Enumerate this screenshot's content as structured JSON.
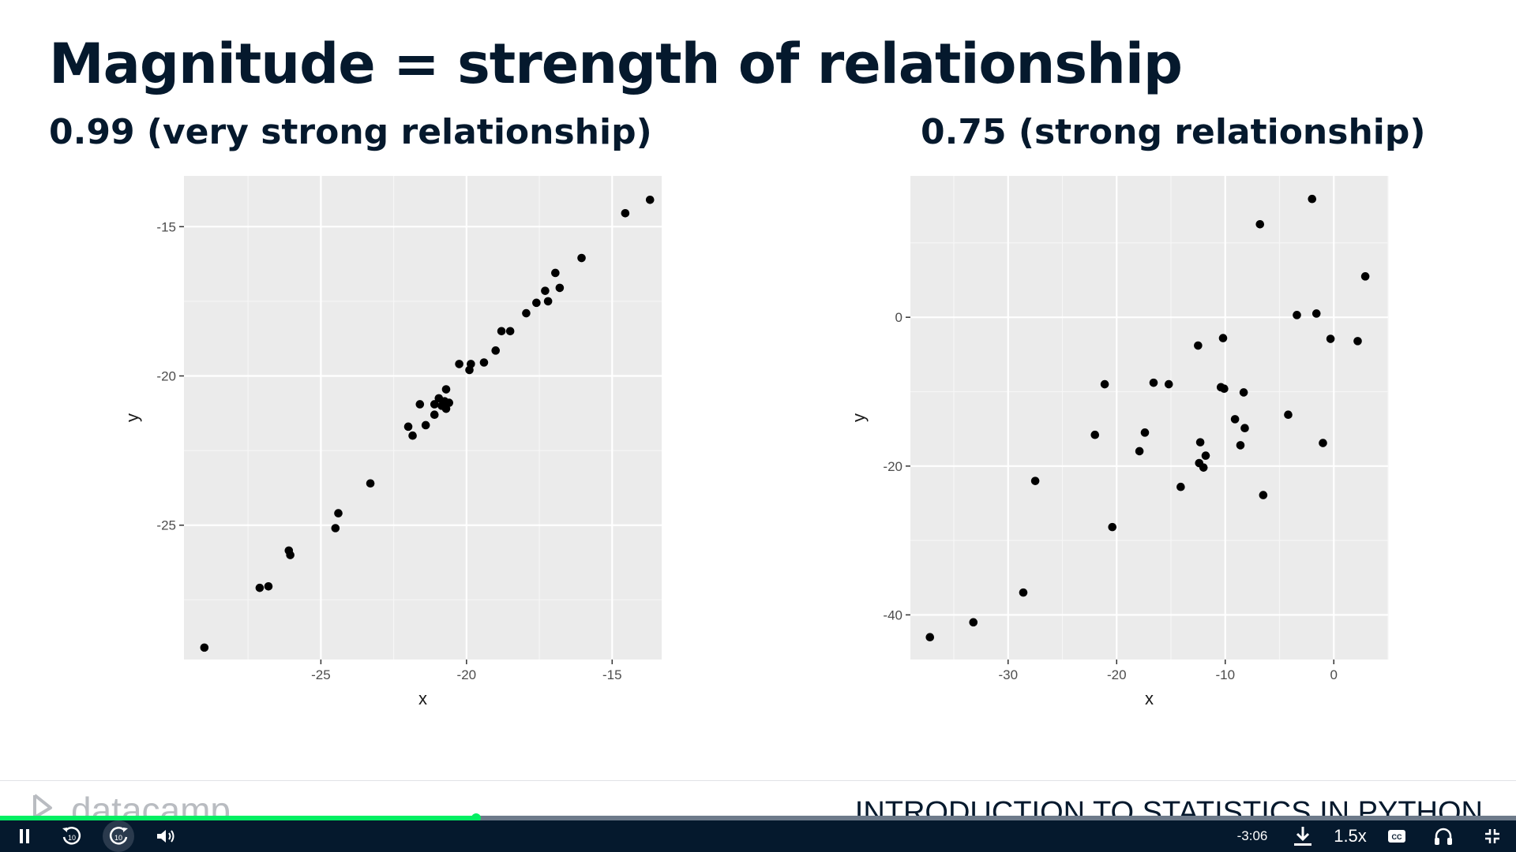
{
  "slide": {
    "title": "Magnitude = strength of relationship",
    "left_subtitle": "0.99 (very strong relationship)",
    "right_subtitle": "0.75 (strong relationship)"
  },
  "chart_data": [
    {
      "type": "scatter",
      "title": "",
      "xlabel": "x",
      "ylabel": "y",
      "xlim": [
        -29.7,
        -13.3
      ],
      "ylim": [
        -29.5,
        -13.3
      ],
      "xticks": [
        -25,
        -20,
        -15
      ],
      "yticks": [
        -15,
        -20,
        -25
      ],
      "grid": true,
      "background": "#ebebeb",
      "point_color": "#000000",
      "points": [
        [
          -29.0,
          -29.1
        ],
        [
          -27.1,
          -27.1
        ],
        [
          -26.8,
          -27.05
        ],
        [
          -26.1,
          -25.85
        ],
        [
          -26.05,
          -26.0
        ],
        [
          -24.5,
          -25.1
        ],
        [
          -24.4,
          -24.6
        ],
        [
          -23.3,
          -23.6
        ],
        [
          -22.0,
          -21.7
        ],
        [
          -21.85,
          -22.0
        ],
        [
          -21.6,
          -20.95
        ],
        [
          -21.4,
          -21.65
        ],
        [
          -21.1,
          -21.3
        ],
        [
          -21.1,
          -20.95
        ],
        [
          -20.95,
          -20.75
        ],
        [
          -20.85,
          -21.0
        ],
        [
          -20.75,
          -20.85
        ],
        [
          -20.7,
          -21.1
        ],
        [
          -20.7,
          -20.45
        ],
        [
          -20.6,
          -20.9
        ],
        [
          -20.25,
          -19.6
        ],
        [
          -19.9,
          -19.8
        ],
        [
          -19.85,
          -19.6
        ],
        [
          -19.4,
          -19.55
        ],
        [
          -19.0,
          -19.15
        ],
        [
          -18.8,
          -18.5
        ],
        [
          -18.5,
          -18.5
        ],
        [
          -17.95,
          -17.9
        ],
        [
          -17.6,
          -17.55
        ],
        [
          -17.3,
          -17.15
        ],
        [
          -17.2,
          -17.5
        ],
        [
          -16.95,
          -16.55
        ],
        [
          -16.8,
          -17.05
        ],
        [
          -16.05,
          -16.05
        ],
        [
          -14.55,
          -14.55
        ],
        [
          -13.7,
          -14.1
        ]
      ]
    },
    {
      "type": "scatter",
      "title": "",
      "xlabel": "x",
      "ylabel": "y",
      "xlim": [
        -39.0,
        5.0
      ],
      "ylim": [
        -46.0,
        19.0
      ],
      "xticks": [
        -30,
        -20,
        -10,
        0
      ],
      "yticks": [
        0,
        -20,
        -40
      ],
      "grid": true,
      "background": "#ebebeb",
      "point_color": "#000000",
      "points": [
        [
          -37.2,
          -43.0
        ],
        [
          -33.2,
          -41.0
        ],
        [
          -28.6,
          -37.0
        ],
        [
          -27.5,
          -22.0
        ],
        [
          -22.0,
          -15.8
        ],
        [
          -21.1,
          -9.0
        ],
        [
          -20.4,
          -28.2
        ],
        [
          -17.9,
          -18.0
        ],
        [
          -17.4,
          -15.5
        ],
        [
          -16.6,
          -8.8
        ],
        [
          -15.2,
          -9.0
        ],
        [
          -14.1,
          -22.8
        ],
        [
          -12.5,
          -3.8
        ],
        [
          -12.4,
          -19.6
        ],
        [
          -12.3,
          -16.8
        ],
        [
          -12.0,
          -20.2
        ],
        [
          -11.8,
          -18.6
        ],
        [
          -10.4,
          -9.4
        ],
        [
          -10.2,
          -2.8
        ],
        [
          -10.1,
          -9.6
        ],
        [
          -9.1,
          -13.7
        ],
        [
          -8.6,
          -17.2
        ],
        [
          -8.3,
          -10.1
        ],
        [
          -8.2,
          -14.9
        ],
        [
          -6.8,
          12.5
        ],
        [
          -6.5,
          -23.9
        ],
        [
          -4.2,
          -13.1
        ],
        [
          -3.4,
          0.3
        ],
        [
          -2.0,
          15.9
        ],
        [
          -1.6,
          0.5
        ],
        [
          -1.0,
          -16.9
        ],
        [
          -0.3,
          -2.9
        ],
        [
          2.2,
          -3.2
        ],
        [
          2.9,
          5.5
        ]
      ]
    }
  ],
  "footer": {
    "logo_text": "datacamp",
    "course_title": "INTRODUCTION TO STATISTICS IN PYTHON"
  },
  "player": {
    "progress_fraction": 0.314,
    "time_remaining": "-3:06",
    "speed": "1.5x",
    "accent_color": "#03ef62",
    "bar_color": "#05192d",
    "icons": [
      "pause-icon",
      "rewind-10-icon",
      "forward-10-icon",
      "volume-icon",
      "download-icon",
      "captions-icon",
      "headphones-icon",
      "exit-fullscreen-icon"
    ]
  }
}
